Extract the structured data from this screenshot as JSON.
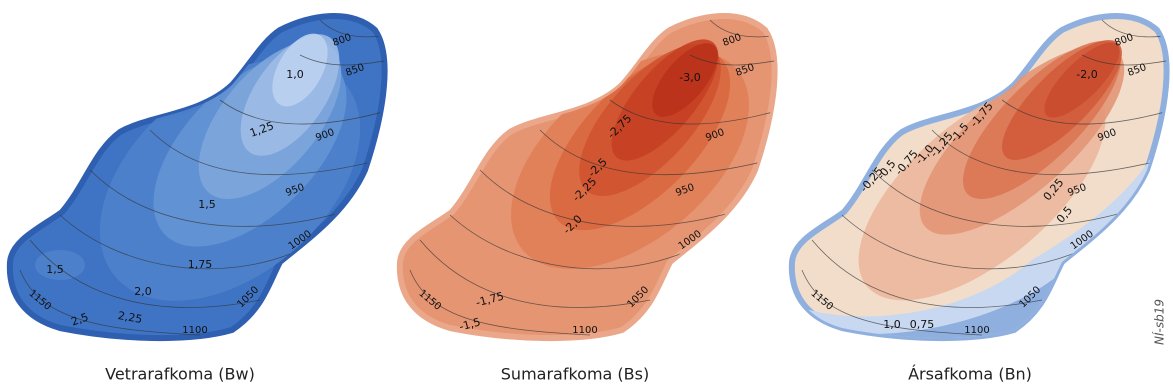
{
  "maps": [
    {
      "caption": "Vetrarafkoma (Bw)",
      "elevation_labels": [
        "800",
        "850",
        "900",
        "950",
        "1000",
        "1050",
        "1100",
        "1150"
      ],
      "value_labels": [
        "1,0",
        "1,25",
        "1,5",
        "1,75",
        "2,0",
        "2,25",
        "2,5",
        "1,5"
      ]
    },
    {
      "caption": "Sumarafkoma (Bs)",
      "elevation_labels": [
        "800",
        "850",
        "900",
        "950",
        "1000",
        "1050",
        "1100",
        "1150"
      ],
      "value_labels": [
        "-3,0",
        "-2,75",
        "-2,5",
        "-2,25",
        "-2,0",
        "-1,75",
        "-1,5"
      ]
    },
    {
      "caption": "Ársafkoma (Bn)",
      "elevation_labels": [
        "800",
        "850",
        "900",
        "950",
        "1000",
        "1050",
        "1100",
        "1150"
      ],
      "value_labels": [
        "-2,0",
        "-1,75",
        "-1,5",
        "-1,25",
        "-1,0",
        "-0,75",
        "-0,5",
        "-0,25",
        "0,25",
        "0,5",
        "1,0",
        "0,75"
      ]
    }
  ],
  "credit": "NÍ-sb19"
}
